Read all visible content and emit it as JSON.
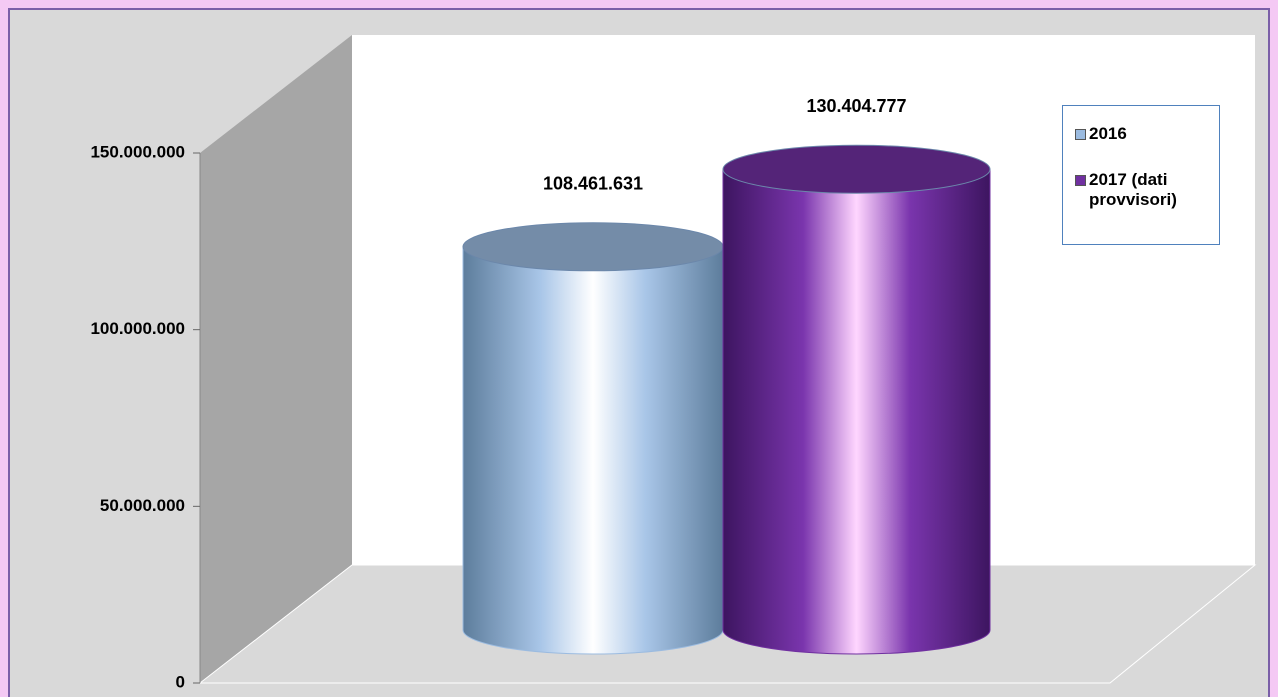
{
  "chart_data": {
    "type": "cylinder",
    "series": [
      {
        "name": "2016",
        "color": "#9bbbe0",
        "values": [
          108461631
        ],
        "value_labels": [
          "108.461.631"
        ]
      },
      {
        "name": "2017 (dati provvisori)",
        "color": "#7030a0",
        "values": [
          130404777
        ],
        "value_labels": [
          "130.404.777"
        ]
      }
    ],
    "ylim": [
      0,
      150000000
    ],
    "yticks": [
      {
        "value": 0,
        "label": "0"
      },
      {
        "value": 50000000,
        "label": "50.000.000"
      },
      {
        "value": 100000000,
        "label": "100.000.000"
      },
      {
        "value": 150000000,
        "label": "150.000.000"
      }
    ],
    "legend": "top-right"
  }
}
